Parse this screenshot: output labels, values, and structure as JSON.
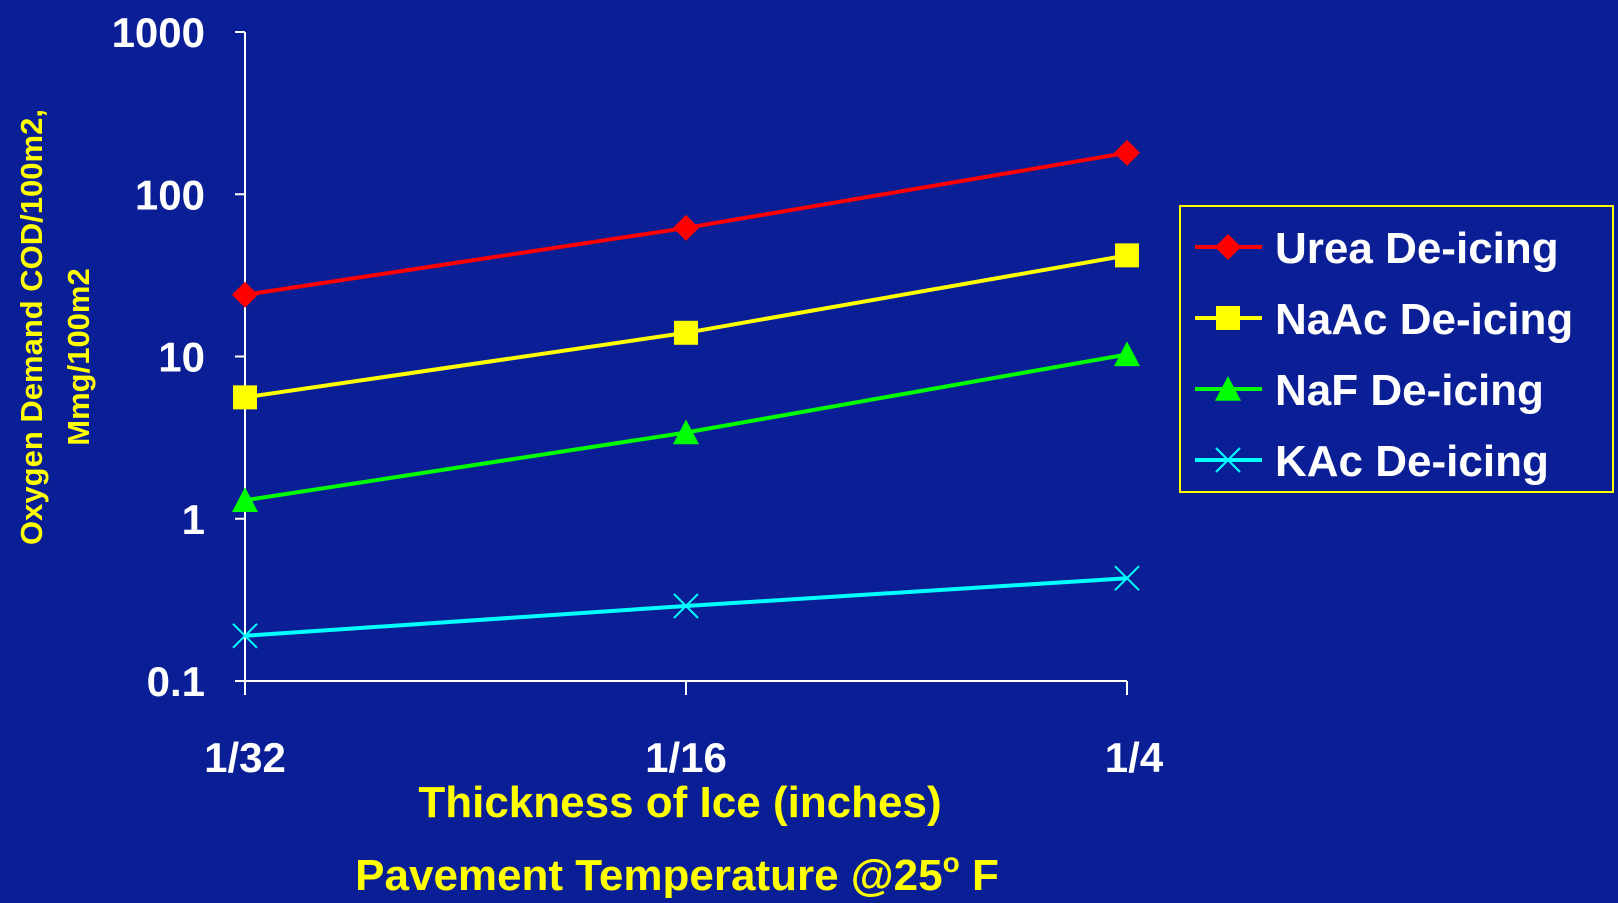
{
  "colors": {
    "background": "#0a1f96",
    "axis": "#ffffff",
    "tick_label": "#ffffff",
    "axis_title": "#ffff00",
    "legend_border": "#ffff00"
  },
  "chart_data": {
    "type": "line",
    "title": "",
    "xlabel": "Thickness of Ice (inches)",
    "xlabel_sub_prefix": "Pavement Temperature @25",
    "xlabel_sub_sup": "o",
    "xlabel_sub_suffix": " F",
    "ylabel_line1": "Oxygen Demand COD/100m2,",
    "ylabel_line2": "Mmg/100m2",
    "yscale": "log",
    "ylim": [
      0.1,
      1000
    ],
    "yticks": [
      "0.1",
      "1",
      "10",
      "100",
      "1000"
    ],
    "categories": [
      "1/32",
      "1/16",
      "1/4"
    ],
    "grid": false,
    "legend_position": "right",
    "series": [
      {
        "name": "Urea De-icing",
        "color": "#ff0000",
        "marker": "diamond",
        "values": [
          24,
          62,
          180
        ]
      },
      {
        "name": "NaAc De-icing",
        "color": "#ffff00",
        "marker": "square",
        "values": [
          5.6,
          14,
          42
        ]
      },
      {
        "name": "NaF De-icing",
        "color": "#00ff00",
        "marker": "triangle",
        "values": [
          1.3,
          3.4,
          10.3
        ]
      },
      {
        "name": "KAc De-icing",
        "color": "#00ffff",
        "marker": "x",
        "values": [
          0.19,
          0.29,
          0.43
        ]
      }
    ]
  }
}
